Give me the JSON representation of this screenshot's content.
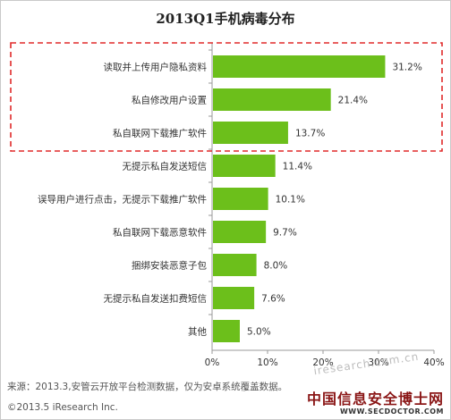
{
  "chart_data": {
    "type": "bar",
    "orientation": "horizontal",
    "title": "2013Q1手机病毒分布",
    "categories": [
      "读取并上传用户隐私资料",
      "私自修改用户设置",
      "私自联网下载推广软件",
      "无提示私自发送短信",
      "误导用户进行点击，无提示下载推广软件",
      "私自联网下载恶意软件",
      "捆绑安装恶意子包",
      "无提示私自发送扣费短信",
      "其他"
    ],
    "values": [
      31.2,
      21.4,
      13.7,
      11.4,
      10.1,
      9.7,
      8.0,
      7.6,
      5.0
    ],
    "value_labels": [
      "31.2%",
      "21.4%",
      "13.7%",
      "11.4%",
      "10.1%",
      "9.7%",
      "8.0%",
      "7.6%",
      "5.0%"
    ],
    "xlim": [
      0,
      40
    ],
    "x_ticks": [
      "0%",
      "10%",
      "20%",
      "30%",
      "40%"
    ],
    "bar_color": "#6cbf1b",
    "highlight_color": "#e02a2a",
    "highlighted_categories": 3,
    "grid": false
  },
  "footer": {
    "source": "来源：2013.3,安管云开放平台检测数据，仅为安卓系统覆盖数据。",
    "copyright": "©2013.5 iResearch Inc."
  },
  "brand": {
    "name": "中国信息安全博士网",
    "url": "WWW.SECDOCTOR.COM"
  },
  "watermark": "iresearch.com.cn"
}
